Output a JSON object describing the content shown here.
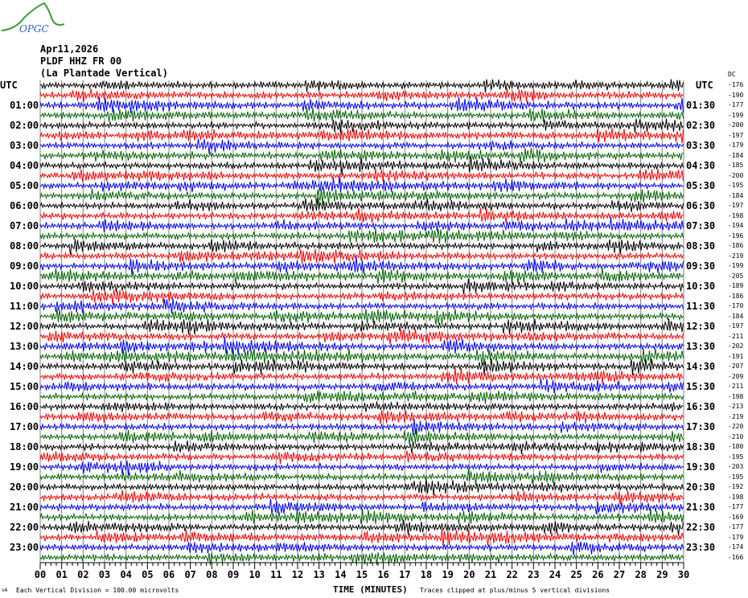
{
  "logo_text": "OPGC",
  "header": {
    "date": "Apr11,2026",
    "station": "PLDF HHZ FR 00",
    "description": "(La Plantade Vertical)"
  },
  "left_timezone": "UTC",
  "right_timezone": "UTC",
  "right_column_header": "DC",
  "colors": {
    "trace_cycle": [
      "#000000",
      "#ff0000",
      "#0000ff",
      "#006400"
    ],
    "grid": "#808080"
  },
  "chart_data": {
    "type": "line",
    "subtype": "helicorder",
    "xlabel": "TIME (MINUTES)",
    "xlim": [
      0,
      30
    ],
    "x_ticks": [
      "00",
      "01",
      "02",
      "03",
      "04",
      "05",
      "06",
      "07",
      "08",
      "09",
      "10",
      "11",
      "12",
      "13",
      "14",
      "15",
      "16",
      "17",
      "18",
      "19",
      "20",
      "21",
      "22",
      "23",
      "24",
      "25",
      "26",
      "27",
      "28",
      "29",
      "30"
    ],
    "left_labels": [
      "01:00",
      "02:00",
      "03:00",
      "04:00",
      "05:00",
      "06:00",
      "07:00",
      "08:00",
      "09:00",
      "10:00",
      "11:00",
      "12:00",
      "13:00",
      "14:00",
      "15:00",
      "16:00",
      "17:00",
      "18:00",
      "19:00",
      "20:00",
      "21:00",
      "22:00",
      "23:00"
    ],
    "right_labels": [
      "01:30",
      "02:30",
      "03:30",
      "04:30",
      "05:30",
      "06:30",
      "07:30",
      "08:30",
      "09:30",
      "10:30",
      "11:30",
      "12:30",
      "13:30",
      "14:30",
      "15:30",
      "16:30",
      "17:30",
      "18:30",
      "19:30",
      "20:30",
      "21:30",
      "22:30",
      "23:30"
    ],
    "trace_offsets_dc": [
      -176,
      -190,
      -177,
      -199,
      -200,
      -197,
      -179,
      -184,
      -185,
      -200,
      -195,
      -184,
      -197,
      -198,
      -194,
      -196,
      -186,
      -219,
      -199,
      -205,
      -189,
      -186,
      -170,
      -184,
      -197,
      -211,
      -202,
      -191,
      -207,
      -209,
      -211,
      -198,
      -213,
      -219,
      -220,
      -210,
      -180,
      -195,
      -203,
      -195,
      -192,
      -198,
      -177,
      -169,
      -177,
      -179,
      -174,
      -166
    ],
    "grid": true
  },
  "footer": {
    "scale_note": "Each Vertical Division =  100.00 microvolts",
    "clip_note": "Traces clipped at plus/minus 5 vertical divisions"
  }
}
